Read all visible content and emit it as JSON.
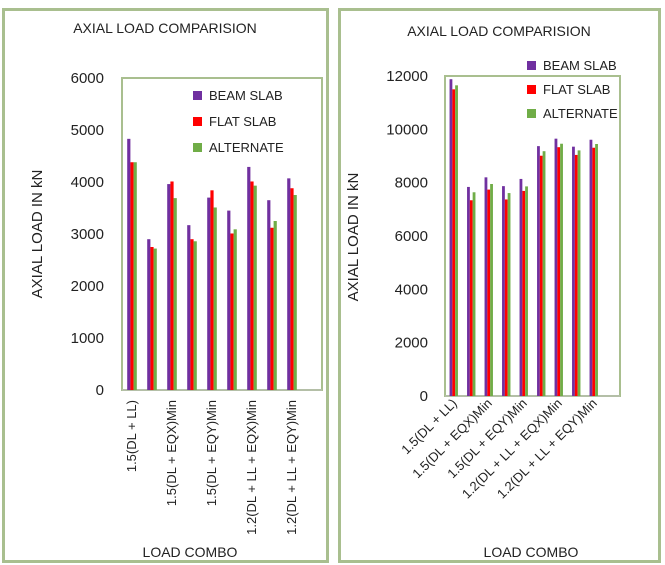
{
  "chart_data": [
    {
      "type": "bar",
      "title": "AXIAL LOAD COMPARISION",
      "xlabel": "LOAD COMBO",
      "ylabel": "AXIAL LOAD IN kN",
      "ylim": [
        0,
        6000
      ],
      "yticks": [
        0,
        1000,
        2000,
        3000,
        4000,
        5000,
        6000
      ],
      "categories": [
        "1.5(DL + LL)",
        "",
        "1.5(DL + EQX)Min",
        "",
        "1.5(DL + EQY)Min",
        "",
        "1.2(DL + LL + EQX)Min",
        "",
        "1.2(DL + LL + EQY)Min",
        ""
      ],
      "x_tick_labels": [
        "1.5(DL + LL)",
        "1.5(DL + EQX)Min",
        "1.5(DL + EQY)Min",
        "1.2(DL + LL + EQX)Min",
        "1.2(DL + LL + EQY)Min"
      ],
      "grid": false,
      "legend_position": "top-right",
      "series": [
        {
          "name": "BEAM SLAB",
          "color": "#7030a0",
          "values": [
            4830,
            2900,
            3960,
            3170,
            3700,
            3450,
            4290,
            3650,
            4070,
            0
          ]
        },
        {
          "name": "FLAT SLAB",
          "color": "#ff0000",
          "values": [
            4380,
            2750,
            4010,
            2900,
            3840,
            3010,
            4010,
            3120,
            3880,
            0
          ]
        },
        {
          "name": "ALTERNATE",
          "color": "#70ad47",
          "values": [
            4380,
            2720,
            3690,
            2860,
            3510,
            3090,
            3930,
            3250,
            3750,
            0
          ]
        }
      ]
    },
    {
      "type": "bar",
      "title": "AXIAL LOAD COMPARISION",
      "xlabel": "LOAD COMBO",
      "ylabel": "AXIAL LOAD IN kN",
      "ylim": [
        0,
        12000
      ],
      "yticks": [
        0,
        2000,
        4000,
        6000,
        8000,
        10000,
        12000
      ],
      "categories": [
        "1.5(DL + LL)",
        "",
        "1.5(DL + EQX)Min",
        "",
        "1.5(DL + EQY)Min",
        "",
        "1.2(DL + LL + EQX)Min",
        "",
        "1.2(DL + LL + EQY)Min",
        ""
      ],
      "x_tick_labels": [
        "1.5(DL + LL)",
        "1.5(DL + EQX)Min",
        "1.5(DL + EQY)Min",
        "1.2(DL + LL + EQX)Min",
        "1.2(DL + LL + EQY)Min"
      ],
      "grid": false,
      "legend_position": "top-right",
      "series": [
        {
          "name": "BEAM SLAB",
          "color": "#7030a0",
          "values": [
            11880,
            7840,
            8200,
            7870,
            8140,
            9370,
            9650,
            9350,
            9610,
            0
          ]
        },
        {
          "name": "FLAT SLAB",
          "color": "#ff0000",
          "values": [
            11500,
            7340,
            7740,
            7370,
            7690,
            9010,
            9330,
            9040,
            9310,
            0
          ]
        },
        {
          "name": "ALTERNATE",
          "color": "#70ad47",
          "values": [
            11650,
            7640,
            7950,
            7610,
            7860,
            9180,
            9460,
            9210,
            9450,
            0
          ]
        }
      ]
    }
  ]
}
